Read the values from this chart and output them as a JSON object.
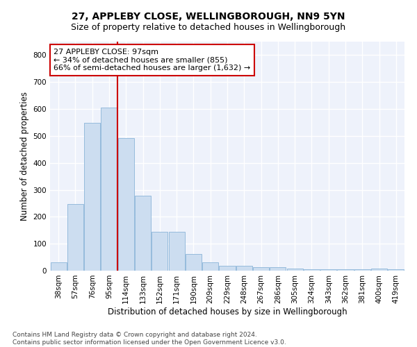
{
  "title": "27, APPLEBY CLOSE, WELLINGBOROUGH, NN9 5YN",
  "subtitle": "Size of property relative to detached houses in Wellingborough",
  "xlabel": "Distribution of detached houses by size in Wellingborough",
  "ylabel": "Number of detached properties",
  "bar_color": "#ccddf0",
  "bar_edge_color": "#8ab4d8",
  "background_color": "#eef2fb",
  "grid_color": "#ffffff",
  "categories": [
    "38sqm",
    "57sqm",
    "76sqm",
    "95sqm",
    "114sqm",
    "133sqm",
    "152sqm",
    "171sqm",
    "190sqm",
    "209sqm",
    "229sqm",
    "248sqm",
    "267sqm",
    "286sqm",
    "305sqm",
    "324sqm",
    "343sqm",
    "362sqm",
    "381sqm",
    "400sqm",
    "419sqm"
  ],
  "values": [
    30,
    247,
    549,
    606,
    493,
    277,
    145,
    145,
    62,
    30,
    18,
    18,
    12,
    12,
    8,
    5,
    5,
    5,
    5,
    8,
    5
  ],
  "property_line_x": 3.5,
  "property_line_color": "#cc0000",
  "annotation_line1": "27 APPLEBY CLOSE: 97sqm",
  "annotation_line2": "← 34% of detached houses are smaller (855)",
  "annotation_line3": "66% of semi-detached houses are larger (1,632) →",
  "annotation_box_color": "#ffffff",
  "annotation_box_edge": "#cc0000",
  "ylim": [
    0,
    850
  ],
  "yticks": [
    0,
    100,
    200,
    300,
    400,
    500,
    600,
    700,
    800
  ],
  "footer": "Contains HM Land Registry data © Crown copyright and database right 2024.\nContains public sector information licensed under the Open Government Licence v3.0.",
  "title_fontsize": 10,
  "subtitle_fontsize": 9,
  "xlabel_fontsize": 8.5,
  "ylabel_fontsize": 8.5,
  "tick_fontsize": 7.5,
  "footer_fontsize": 6.5,
  "annotation_fontsize": 8
}
